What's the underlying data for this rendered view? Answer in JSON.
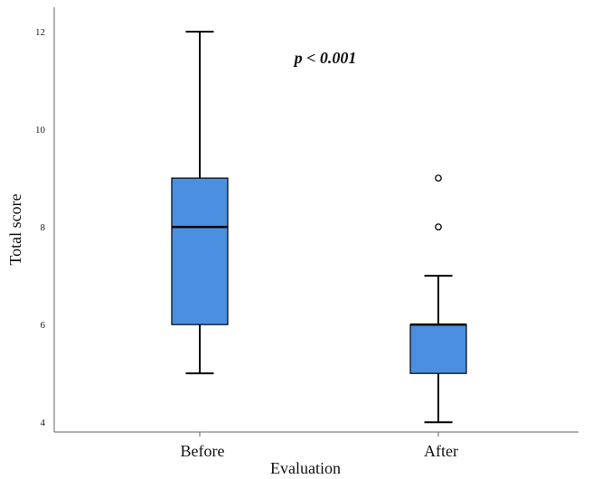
{
  "chart_data": {
    "type": "box",
    "xlabel": "Evaluation",
    "ylabel": "Total score",
    "ylim": [
      3.8,
      12.5
    ],
    "yticks": [
      "4",
      "6",
      "8",
      "10",
      "12"
    ],
    "annotation": "p < 0.001",
    "box_color": "#4a8fe0",
    "categories": [
      "Before",
      "After"
    ],
    "boxes": [
      {
        "category": "Before",
        "whisker_low": 5,
        "q1": 6,
        "median": 8,
        "q3": 9,
        "whisker_high": 12,
        "outliers": []
      },
      {
        "category": "After",
        "whisker_low": 4,
        "q1": 5,
        "median": 6,
        "q3": 6,
        "whisker_high": 7,
        "outliers": [
          8,
          9
        ]
      }
    ]
  }
}
